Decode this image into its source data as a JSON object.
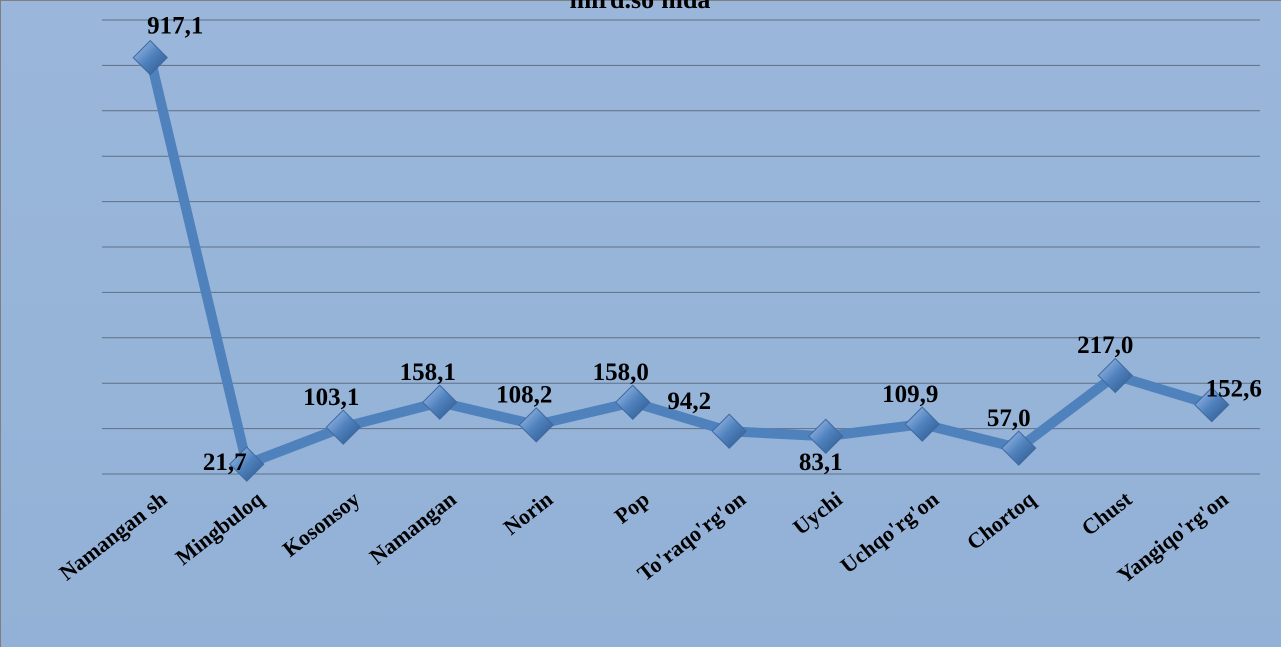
{
  "chart_data": {
    "type": "line",
    "title": "mlrd.so'mda",
    "categories": [
      "Namangan sh",
      "Mingbuloq",
      "Kosonsoy",
      "Namangan",
      "Norin",
      "Pop",
      "To'raqo'rg'on",
      "Uychi",
      "Uchqo'rg'on",
      "Chortoq",
      "Chust",
      "Yangiqo'rg'on"
    ],
    "series": [
      {
        "name": "mlrd.so'mda",
        "color": "#4f81bd",
        "values": [
          917.1,
          21.7,
          103.1,
          158.1,
          108.2,
          158.0,
          94.2,
          83.1,
          109.9,
          57.0,
          217.0,
          152.6
        ],
        "value_labels": [
          "917,1",
          "21,7",
          "103,1",
          "158,1",
          "108,2",
          "158,0",
          "94,2",
          "83,1",
          "109,9",
          "57,0",
          "217,0",
          "152,6"
        ]
      }
    ],
    "ylim": [
      0,
      1000
    ],
    "yticks": [
      0,
      100,
      200,
      300,
      400,
      500,
      600,
      700,
      800,
      900,
      1000
    ],
    "grid": true
  }
}
